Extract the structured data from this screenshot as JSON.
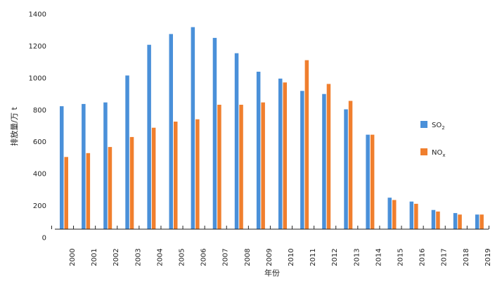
{
  "chart_data": {
    "type": "bar",
    "xlabel": "年份",
    "ylabel": "排放量/万 t",
    "ylim": [
      0,
      1400
    ],
    "yticks": [
      0,
      200,
      400,
      600,
      800,
      1000,
      1200,
      1400
    ],
    "categories": [
      "2000",
      "2001",
      "2002",
      "2003",
      "2004",
      "2005",
      "2006",
      "2007",
      "2008",
      "2009",
      "2010",
      "2011",
      "2012",
      "2013",
      "2014",
      "2015",
      "2016",
      "2017",
      "2018",
      "2019"
    ],
    "series": [
      {
        "name": "SO2",
        "legend_base": "SO",
        "legend_sub": "2",
        "color": "#4a90d9",
        "values": [
          800,
          815,
          825,
          1000,
          1200,
          1270,
          1315,
          1245,
          1145,
          1025,
          980,
          900,
          880,
          780,
          615,
          205,
          180,
          125,
          105,
          95
        ]
      },
      {
        "name": "NOx",
        "legend_base": "NO",
        "legend_sub": "x",
        "color": "#f07f2e",
        "values": [
          470,
          495,
          535,
          600,
          660,
          700,
          715,
          810,
          810,
          825,
          955,
          1100,
          945,
          835,
          615,
          190,
          165,
          115,
          95,
          95
        ]
      }
    ],
    "grid": false,
    "legend": "right"
  }
}
